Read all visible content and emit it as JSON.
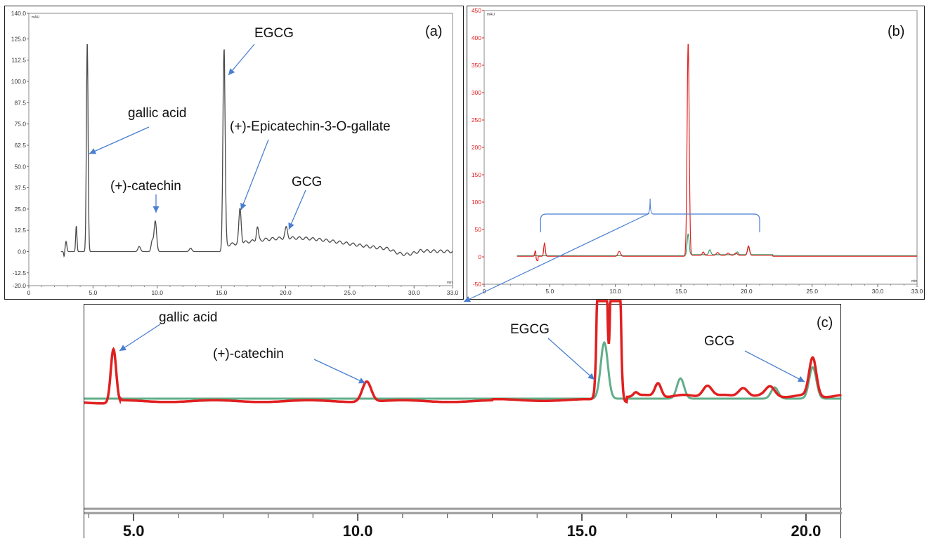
{
  "chart_data": [
    {
      "panel_label": "(a)",
      "type": "line",
      "unit_label": "mAU",
      "x_end_label": "min",
      "xlim": [
        0,
        33
      ],
      "ylim": [
        -20,
        140
      ],
      "x_ticks": [
        "0",
        "5.0",
        "10.0",
        "15.0",
        "20.0",
        "25.0",
        "30.0",
        "33.0"
      ],
      "y_ticks": [
        "140.0",
        "125.0",
        "112.5",
        "100.0",
        "87.5",
        "75.0",
        "62.5",
        "50.0",
        "37.5",
        "25.0",
        "12.5",
        "0.0",
        "-12.5",
        "-20.0"
      ],
      "line_color": "#4a4a4a",
      "series": [
        {
          "peaks": [
            {
              "t": 2.9,
              "h": 6,
              "w": 0.06
            },
            {
              "t": 3.7,
              "h": 15,
              "w": 0.05
            },
            {
              "t": 4.55,
              "h": 123,
              "w": 0.065
            },
            {
              "t": 8.6,
              "h": 3,
              "w": 0.1
            },
            {
              "t": 9.6,
              "h": 6,
              "w": 0.08
            },
            {
              "t": 9.85,
              "h": 18,
              "w": 0.1
            },
            {
              "t": 12.6,
              "h": 2,
              "w": 0.1
            },
            {
              "t": 15.2,
              "h": 118,
              "w": 0.085
            },
            {
              "t": 16.45,
              "h": 20,
              "w": 0.09
            },
            {
              "t": 17.8,
              "h": 8,
              "w": 0.08
            },
            {
              "t": 20.05,
              "h": 6,
              "w": 0.1
            }
          ]
        }
      ],
      "annotations": [
        {
          "text": "gallic acid",
          "target_t": 4.6,
          "target_y": 60
        },
        {
          "text": "(+)-catechin",
          "target_t": 9.85,
          "target_y": 22
        },
        {
          "text": "EGCG",
          "target_t": 15.2,
          "target_y": 112
        },
        {
          "text": "(+)-Epicatechin-3-O-gallate",
          "target_t": 16.4,
          "target_y": 25
        },
        {
          "text": "GCG",
          "target_t": 20.1,
          "target_y": 12
        }
      ]
    },
    {
      "panel_label": "(b)",
      "type": "line",
      "unit_label": "mAU",
      "x_end_label": "min",
      "xlim": [
        0,
        33
      ],
      "ylim": [
        -50,
        450
      ],
      "x_ticks": [
        "0",
        "5.0",
        "10.0",
        "15.0",
        "20.0",
        "25.0",
        "30.0",
        "33.0"
      ],
      "y_ticks": [
        "450",
        "400",
        "350",
        "300",
        "250",
        "200",
        "150",
        "100",
        "50",
        "0",
        "-50"
      ],
      "axis_color": "#e02020",
      "series": [
        {
          "color": "#3a9a6a",
          "peaks": [
            {
              "t": 15.55,
              "h": 40,
              "w": 0.08
            },
            {
              "t": 17.2,
              "h": 9,
              "w": 0.08
            },
            {
              "t": 19.3,
              "h": 5,
              "w": 0.08
            },
            {
              "t": 20.15,
              "h": 14,
              "w": 0.08
            }
          ]
        },
        {
          "color": "#e02020",
          "peaks": [
            {
              "t": 3.9,
              "h": 10,
              "w": 0.05
            },
            {
              "t": 4.6,
              "h": 24,
              "w": 0.06
            },
            {
              "t": 10.3,
              "h": 9,
              "w": 0.1
            },
            {
              "t": 15.55,
              "h": 390,
              "w": 0.08
            },
            {
              "t": 16.7,
              "h": 6,
              "w": 0.07
            },
            {
              "t": 17.8,
              "h": 5,
              "w": 0.1
            },
            {
              "t": 18.6,
              "h": 4,
              "w": 0.1
            },
            {
              "t": 19.2,
              "h": 4,
              "w": 0.1
            },
            {
              "t": 20.15,
              "h": 17,
              "w": 0.08
            }
          ]
        }
      ],
      "zoom_range": [
        4.3,
        21
      ]
    },
    {
      "panel_label": "(c)",
      "type": "line",
      "xlim": [
        3.9,
        20.8
      ],
      "x_ticks": [
        "5.0",
        "10.0",
        "15.0",
        "20.0"
      ],
      "x_tick_values": [
        5,
        10,
        15,
        20
      ],
      "series": [
        {
          "color": "#3a9a6a",
          "peaks": [
            {
              "t": 15.5,
              "h": 25,
              "w": 0.08
            },
            {
              "t": 17.2,
              "h": 9,
              "w": 0.08
            },
            {
              "t": 19.3,
              "h": 5,
              "w": 0.08
            },
            {
              "t": 20.15,
              "h": 14,
              "w": 0.08
            }
          ]
        },
        {
          "color": "#e02020",
          "peaks": [
            {
              "t": 4.55,
              "h": 24,
              "w": 0.06
            },
            {
              "t": 10.2,
              "h": 9,
              "w": 0.1
            },
            {
              "t": 15.45,
              "h": 300,
              "w": 0.06
            },
            {
              "t": 15.75,
              "h": 300,
              "w": 0.06
            },
            {
              "t": 16.2,
              "h": 1.5,
              "w": 0.05
            },
            {
              "t": 16.7,
              "h": 6,
              "w": 0.07
            },
            {
              "t": 17.8,
              "h": 5,
              "w": 0.1
            },
            {
              "t": 18.6,
              "h": 4,
              "w": 0.1
            },
            {
              "t": 19.2,
              "h": 4,
              "w": 0.1
            },
            {
              "t": 20.15,
              "h": 17,
              "w": 0.08
            }
          ]
        }
      ],
      "annotations": [
        {
          "text": "gallic acid",
          "target_t": 4.55
        },
        {
          "text": "(+)-catechin",
          "target_t": 10.2
        },
        {
          "text": "EGCG",
          "target_t": 15.45
        },
        {
          "text": "GCG",
          "target_t": 20.1
        }
      ]
    }
  ]
}
